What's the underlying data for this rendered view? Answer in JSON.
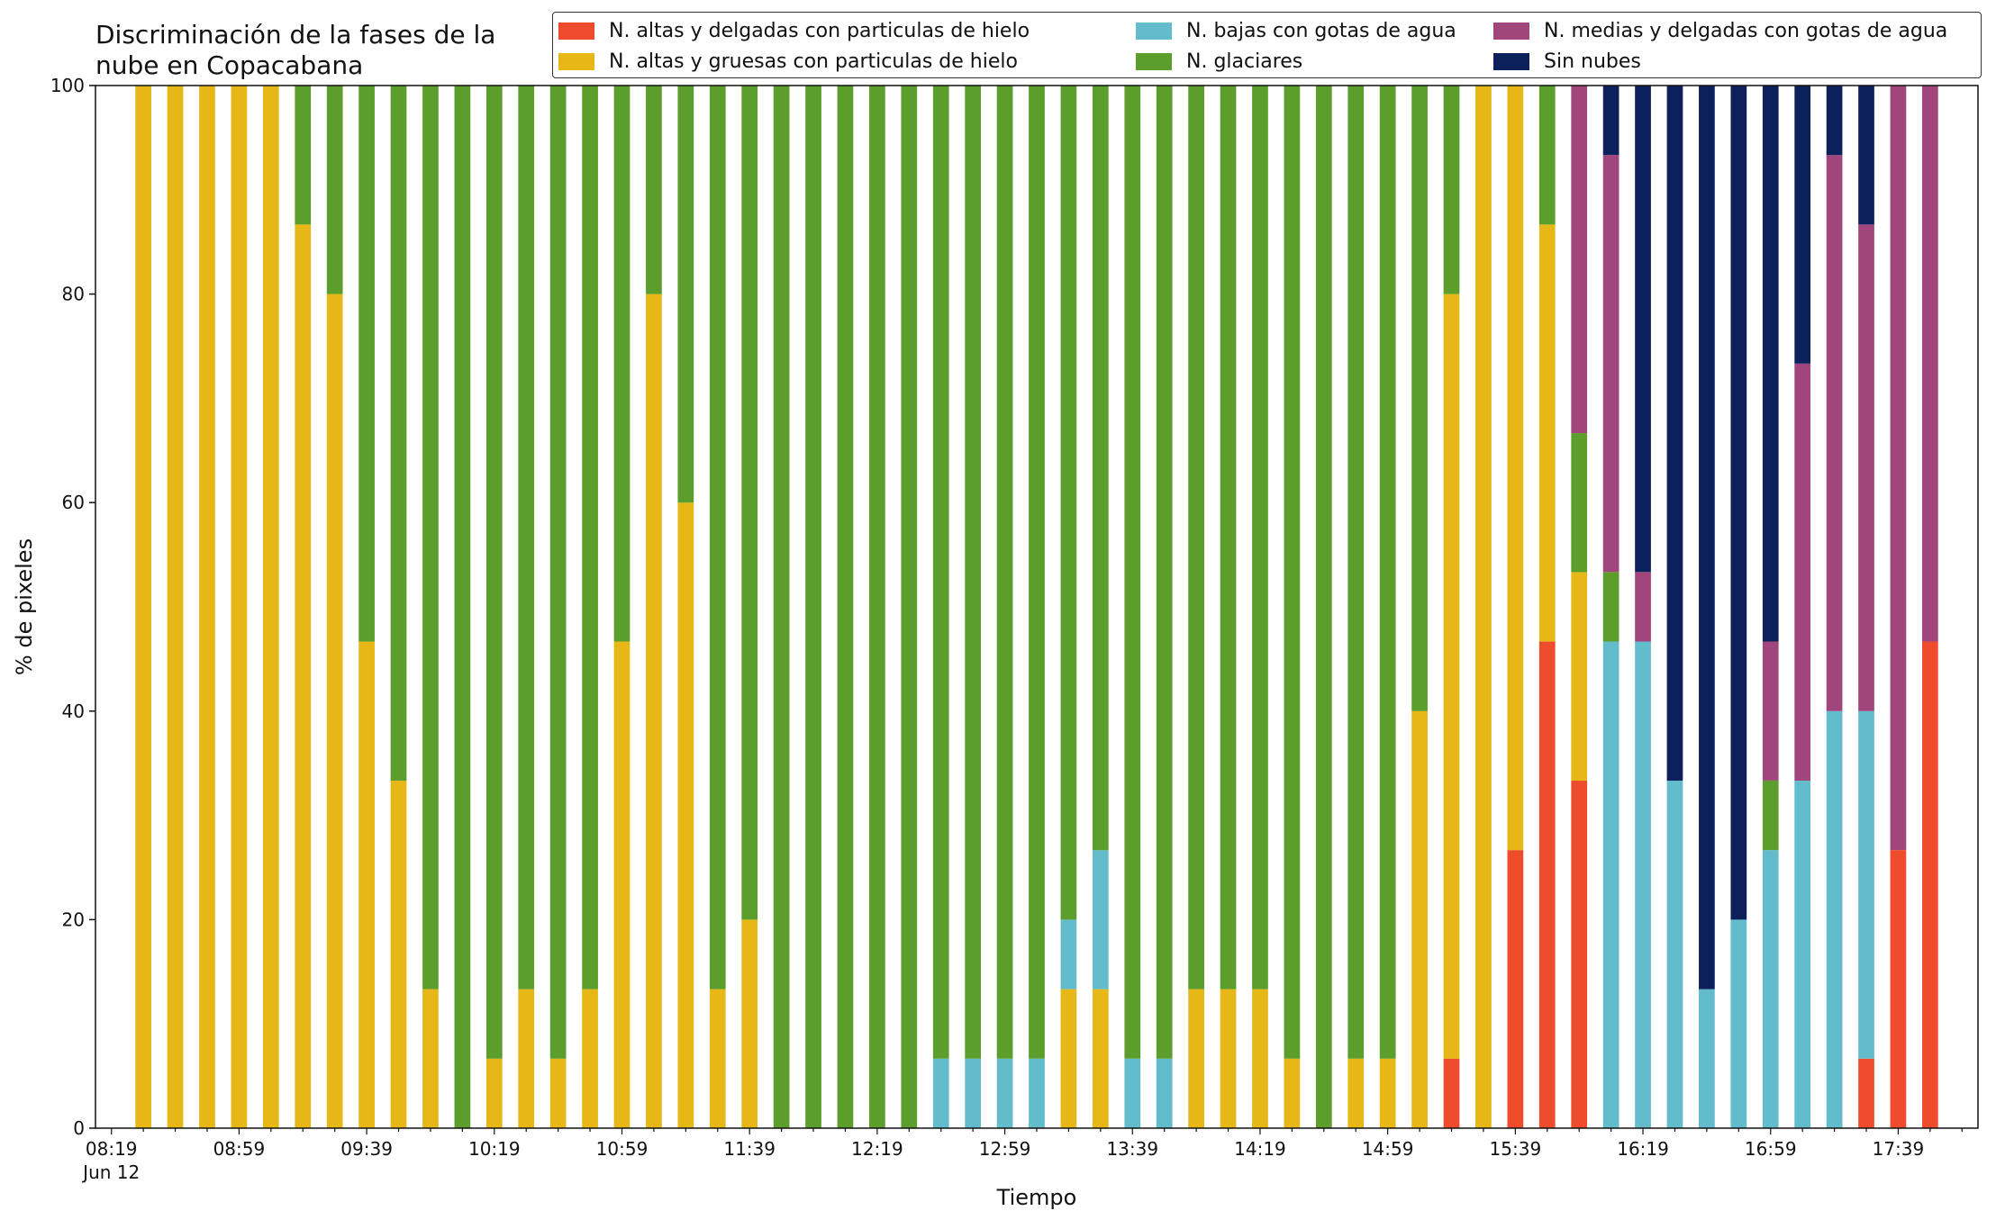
{
  "chart_data": {
    "type": "bar",
    "stacked": true,
    "title": "Discriminación de la fases de la nube en Copacabana",
    "title_lines": [
      "Discriminación de la fases de la",
      "nube en Copacabana"
    ],
    "xlabel": "Tiempo",
    "ylabel": "% de pixeles",
    "ylim": [
      0,
      100
    ],
    "yticks": [
      "0",
      "20",
      "40",
      "60",
      "80",
      "100"
    ],
    "xtick_labels": [
      "08:19",
      "08:59",
      "09:39",
      "10:19",
      "10:59",
      "11:39",
      "12:19",
      "12:59",
      "13:39",
      "14:19",
      "14:59",
      "15:39",
      "16:19",
      "16:59",
      "17:39"
    ],
    "xtick_sublabel": "Jun 12",
    "start_time": "08:19",
    "interval_minutes": 10,
    "grid": false,
    "legend_position": "top-right",
    "categories": [
      "08:19",
      "08:29",
      "08:39",
      "08:49",
      "08:59",
      "09:09",
      "09:19",
      "09:29",
      "09:39",
      "09:49",
      "09:59",
      "10:09",
      "10:19",
      "10:29",
      "10:39",
      "10:49",
      "10:59",
      "11:09",
      "11:19",
      "11:29",
      "11:39",
      "11:49",
      "11:59",
      "12:09",
      "12:19",
      "12:29",
      "12:39",
      "12:49",
      "12:59",
      "13:09",
      "13:19",
      "13:29",
      "13:39",
      "13:49",
      "13:59",
      "14:09",
      "14:19",
      "14:29",
      "14:39",
      "14:49",
      "14:59",
      "15:09",
      "15:19",
      "15:29",
      "15:39",
      "15:49",
      "15:59",
      "16:09",
      "16:19",
      "16:29",
      "16:39",
      "16:49",
      "16:59",
      "17:09",
      "17:19",
      "17:29",
      "17:39",
      "17:49",
      "17:59"
    ],
    "series": [
      {
        "name": "N. altas y delgadas con particulas de hielo",
        "color": "#ee4c2c",
        "values": [
          null,
          0,
          0,
          0,
          0,
          0,
          0,
          0,
          0,
          0,
          0,
          0,
          0,
          0,
          0,
          0,
          0,
          0,
          0,
          0,
          0,
          0,
          0,
          0,
          0,
          0,
          0,
          0,
          0,
          0,
          0,
          0,
          0,
          0,
          0,
          0,
          0,
          0,
          0,
          0,
          0,
          0,
          6.67,
          0,
          26.67,
          46.67,
          33.33,
          0,
          0,
          0,
          0,
          0,
          0,
          0,
          0,
          6.67,
          26.67,
          46.67,
          null
        ]
      },
      {
        "name": "N. altas y gruesas con particulas de hielo",
        "color": "#e6b716",
        "values": [
          null,
          100,
          100,
          100,
          100,
          100,
          86.67,
          80,
          46.67,
          33.33,
          13.33,
          0,
          6.67,
          13.33,
          6.67,
          13.33,
          46.67,
          80,
          60,
          13.33,
          20,
          0,
          0,
          0,
          0,
          0,
          0,
          0,
          0,
          0,
          13.33,
          13.33,
          0,
          0,
          13.33,
          13.33,
          13.33,
          6.67,
          0,
          6.67,
          6.67,
          40,
          73.33,
          100,
          73.33,
          40,
          20,
          0,
          0,
          0,
          0,
          0,
          0,
          0,
          0,
          0,
          0,
          0,
          null
        ]
      },
      {
        "name": "N. bajas con gotas de agua",
        "color": "#63bccb",
        "values": [
          null,
          0,
          0,
          0,
          0,
          0,
          0,
          0,
          0,
          0,
          0,
          0,
          0,
          0,
          0,
          0,
          0,
          0,
          0,
          0,
          0,
          0,
          0,
          0,
          0,
          0,
          6.67,
          6.67,
          6.67,
          6.67,
          6.67,
          13.33,
          6.67,
          6.67,
          0,
          0,
          0,
          0,
          0,
          0,
          0,
          0,
          0,
          0,
          0,
          0,
          0,
          46.67,
          46.67,
          33.33,
          13.33,
          20,
          26.67,
          33.33,
          40,
          33.33,
          0,
          0,
          null
        ]
      },
      {
        "name": "N. glaciares",
        "color": "#5b9e2b",
        "values": [
          null,
          0,
          0,
          0,
          0,
          0,
          13.33,
          20,
          53.33,
          66.67,
          86.67,
          100,
          93.33,
          86.67,
          93.33,
          86.67,
          53.33,
          20,
          40,
          86.67,
          80,
          100,
          100,
          100,
          100,
          100,
          93.33,
          93.33,
          93.33,
          93.33,
          80,
          73.33,
          93.33,
          93.33,
          86.67,
          86.67,
          86.67,
          93.33,
          100,
          93.33,
          93.33,
          60,
          20,
          0,
          0,
          13.33,
          13.33,
          6.67,
          0,
          0,
          0,
          0,
          6.67,
          0,
          0,
          0,
          0,
          0,
          null
        ]
      },
      {
        "name": "N. medias y delgadas con gotas de agua",
        "color": "#a0467c",
        "values": [
          null,
          0,
          0,
          0,
          0,
          0,
          0,
          0,
          0,
          0,
          0,
          0,
          0,
          0,
          0,
          0,
          0,
          0,
          0,
          0,
          0,
          0,
          0,
          0,
          0,
          0,
          0,
          0,
          0,
          0,
          0,
          0,
          0,
          0,
          0,
          0,
          0,
          0,
          0,
          0,
          0,
          0,
          0,
          0,
          0,
          0,
          33.33,
          40,
          6.67,
          0,
          0,
          0,
          13.33,
          40,
          53.33,
          46.67,
          73.33,
          53.33,
          null
        ]
      },
      {
        "name": "Sin nubes",
        "color": "#0c215c",
        "values": [
          null,
          0,
          0,
          0,
          0,
          0,
          0,
          0,
          0,
          0,
          0,
          0,
          0,
          0,
          0,
          0,
          0,
          0,
          0,
          0,
          0,
          0,
          0,
          0,
          0,
          0,
          0,
          0,
          0,
          0,
          0,
          0,
          0,
          0,
          0,
          0,
          0,
          0,
          0,
          0,
          0,
          0,
          0,
          0,
          0,
          0,
          0,
          6.67,
          46.67,
          66.67,
          86.67,
          80,
          53.33,
          26.67,
          6.67,
          13.33,
          0,
          0,
          null
        ]
      }
    ]
  }
}
